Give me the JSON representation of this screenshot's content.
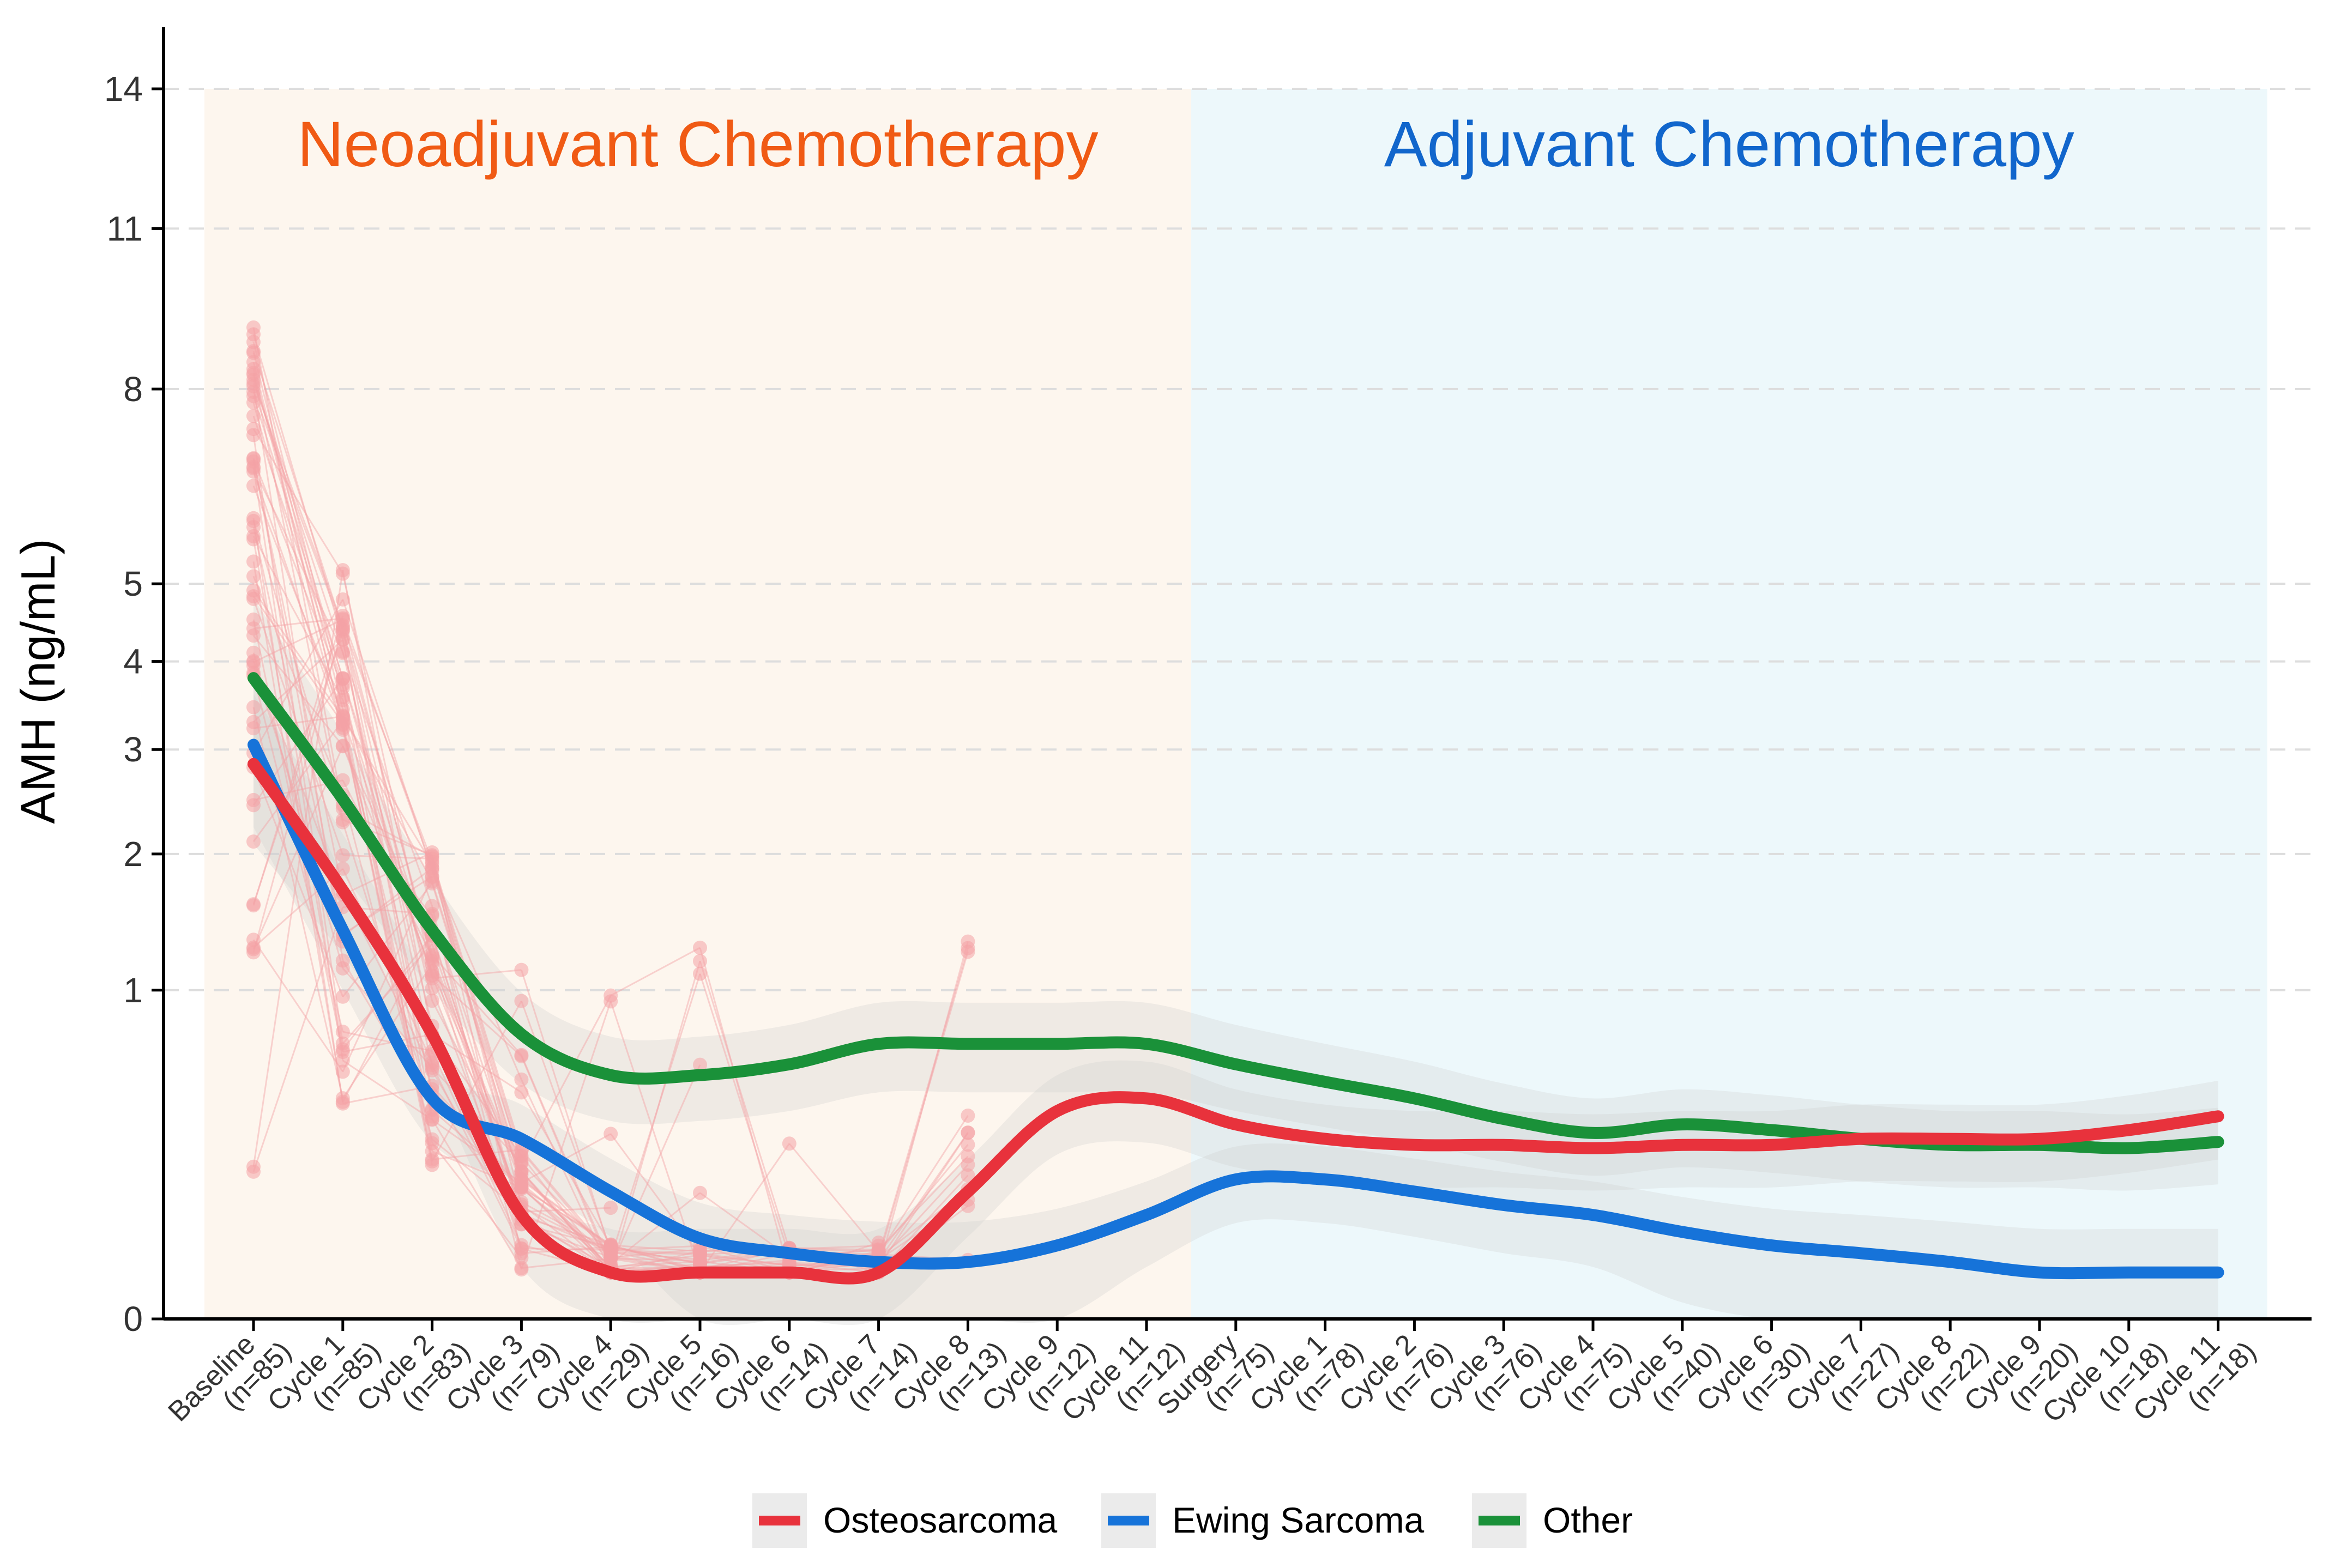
{
  "chart_data": {
    "type": "line",
    "ylabel": "AMH (ng/mL)",
    "xlabel": "",
    "y_scale": "square-root",
    "y_ticks": [
      0,
      1,
      2,
      3,
      4,
      5,
      8,
      11,
      14
    ],
    "ylim": [
      0,
      14
    ],
    "grid": "horizontal dashed",
    "regions": [
      {
        "label": "Neoadjuvant Chemotherapy",
        "from": 0,
        "to": 10.5,
        "color": "#fdf6ee",
        "label_color": "#f05a14"
      },
      {
        "label": "Adjuvant Chemotherapy",
        "from": 10.5,
        "to": 22.5,
        "color": "#edf8fb",
        "label_color": "#1166cc"
      }
    ],
    "categories": [
      [
        "Baseline",
        "(n=85)"
      ],
      [
        "Cycle 1",
        "(n=85)"
      ],
      [
        "Cycle 2",
        "(n=83)"
      ],
      [
        "Cycle 3",
        "(n=79)"
      ],
      [
        "Cycle 4",
        "(n=29)"
      ],
      [
        "Cycle 5",
        "(n=16)"
      ],
      [
        "Cycle 6",
        "(n=14)"
      ],
      [
        "Cycle 7",
        "(n=14)"
      ],
      [
        "Cycle 8",
        "(n=13)"
      ],
      [
        "Cycle 9",
        "(n=12)"
      ],
      [
        "Cycle 11",
        "(n=12)"
      ],
      [
        "Surgery",
        "(n=75)"
      ],
      [
        "Cycle 1",
        "(n=78)"
      ],
      [
        "Cycle 2",
        "(n=76)"
      ],
      [
        "Cycle 3",
        "(n=76)"
      ],
      [
        "Cycle 4",
        "(n=75)"
      ],
      [
        "Cycle 5",
        "(n=40)"
      ],
      [
        "Cycle 6",
        "(n=30)"
      ],
      [
        "Cycle 7",
        "(n=27)"
      ],
      [
        "Cycle 8",
        "(n=22)"
      ],
      [
        "Cycle 9",
        "(n=20)"
      ],
      [
        "Cycle 10",
        "(n=18)"
      ],
      [
        "Cycle 11",
        "(n=18)"
      ]
    ],
    "series": [
      {
        "name": "Osteosarcoma",
        "color": "#e8323c",
        "values": [
          2.85,
          1.7,
          0.75,
          0.1,
          0.02,
          0.02,
          0.02,
          0.02,
          0.15,
          0.4,
          0.45,
          0.35,
          0.3,
          0.28,
          0.28,
          0.27,
          0.28,
          0.28,
          0.3,
          0.3,
          0.3,
          0.33,
          0.38
        ]
      },
      {
        "name": "Ewing Sarcoma",
        "color": "#1673d9",
        "values": [
          3.05,
          1.4,
          0.45,
          0.3,
          0.15,
          0.06,
          0.04,
          0.03,
          0.03,
          0.05,
          0.1,
          0.18,
          0.18,
          0.15,
          0.12,
          0.1,
          0.07,
          0.05,
          0.04,
          0.03,
          0.02,
          0.02,
          0.02
        ]
      },
      {
        "name": "Other",
        "color": "#1a9139",
        "values": [
          3.8,
          2.5,
          1.4,
          0.75,
          0.55,
          0.55,
          0.6,
          0.7,
          0.7,
          0.7,
          0.7,
          0.6,
          0.52,
          0.45,
          0.37,
          0.32,
          0.35,
          0.33,
          0.3,
          0.28,
          0.28,
          0.27,
          0.29
        ]
      }
    ],
    "individual_points_color": "#f4a3a6",
    "legend_position": "bottom"
  }
}
